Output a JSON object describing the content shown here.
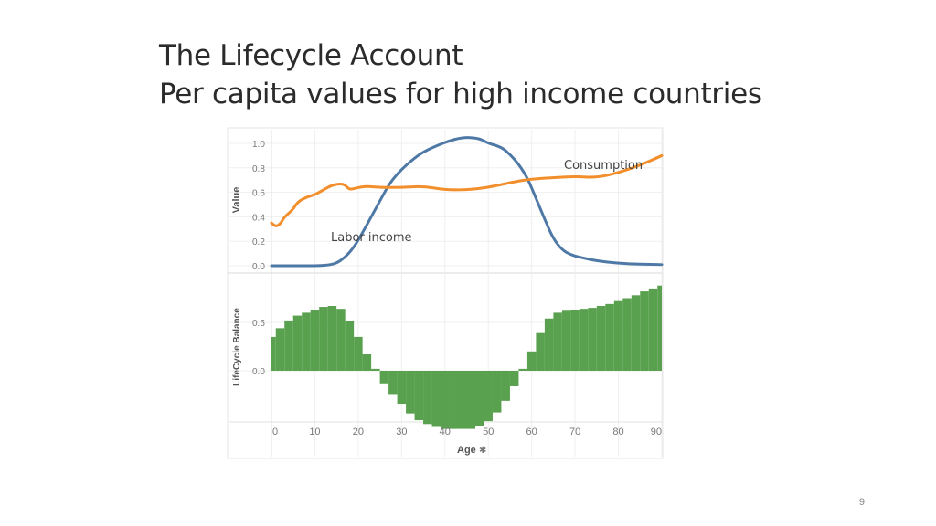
{
  "slide": {
    "title_line1": "The Lifecycle Account",
    "title_line2": "Per capita values for high income countries",
    "page_number": "9"
  },
  "chart_data": {
    "type": "line",
    "panels": [
      {
        "name": "top",
        "ylabel": "Value",
        "yticks": [
          "1.0",
          "0.8",
          "0.6",
          "0.4",
          "0.2",
          "0.0"
        ],
        "ylim": [
          0,
          1.05
        ],
        "series": [
          {
            "name": "Labor income",
            "color": "#4e79a7",
            "x": [
              0,
              5,
              10,
              13,
              15,
              17,
              19,
              21,
              23,
              25,
              27,
              29,
              31,
              33,
              35,
              38,
              41,
              43,
              45,
              48,
              50,
              53,
              55,
              57,
              59,
              61,
              63,
              65,
              67,
              69,
              71,
              75,
              80,
              85,
              90
            ],
            "y": [
              0.0,
              0.0,
              0.0,
              0.005,
              0.02,
              0.07,
              0.15,
              0.27,
              0.4,
              0.53,
              0.66,
              0.75,
              0.82,
              0.88,
              0.93,
              0.98,
              1.02,
              1.04,
              1.05,
              1.04,
              1.0,
              0.97,
              0.91,
              0.83,
              0.72,
              0.55,
              0.38,
              0.22,
              0.13,
              0.09,
              0.07,
              0.04,
              0.02,
              0.012,
              0.01
            ]
          },
          {
            "name": "Consumption",
            "color": "#f28e2b",
            "x": [
              0,
              1,
              2,
              3,
              5,
              6,
              8,
              10,
              12,
              14,
              16,
              17,
              18,
              20,
              22,
              25,
              30,
              35,
              40,
              45,
              50,
              55,
              60,
              65,
              70,
              75,
              80,
              85,
              90
            ],
            "y": [
              0.35,
              0.32,
              0.34,
              0.4,
              0.46,
              0.52,
              0.56,
              0.58,
              0.62,
              0.66,
              0.67,
              0.66,
              0.62,
              0.64,
              0.65,
              0.64,
              0.64,
              0.65,
              0.62,
              0.62,
              0.64,
              0.68,
              0.71,
              0.72,
              0.73,
              0.72,
              0.76,
              0.82,
              0.9
            ]
          }
        ]
      },
      {
        "name": "bottom",
        "type": "bar",
        "ylabel": "LifeCycle Balance",
        "yticks": [
          "0.5",
          "0.0"
        ],
        "ylim": [
          -0.65,
          0.85
        ],
        "series": [
          {
            "name": "LifeCycle Balance",
            "color": "#59a14f",
            "x": [
              0,
              2,
              4,
              6,
              8,
              10,
              12,
              14,
              16,
              18,
              20,
              22,
              24,
              26,
              28,
              30,
              32,
              34,
              36,
              38,
              40,
              42,
              44,
              46,
              48,
              50,
              52,
              54,
              56,
              58,
              60,
              62,
              64,
              66,
              68,
              70,
              72,
              74,
              76,
              78,
              80,
              82,
              84,
              86,
              88,
              90
            ],
            "y": [
              0.35,
              0.44,
              0.52,
              0.57,
              0.6,
              0.63,
              0.66,
              0.67,
              0.64,
              0.51,
              0.35,
              0.17,
              0.02,
              -0.13,
              -0.24,
              -0.34,
              -0.44,
              -0.51,
              -0.55,
              -0.58,
              -0.6,
              -0.6,
              -0.6,
              -0.6,
              -0.57,
              -0.52,
              -0.43,
              -0.31,
              -0.16,
              0.02,
              0.2,
              0.39,
              0.54,
              0.6,
              0.62,
              0.63,
              0.64,
              0.65,
              0.67,
              0.69,
              0.72,
              0.75,
              0.78,
              0.82,
              0.85,
              0.88
            ]
          }
        ]
      }
    ],
    "xlabel": "Age",
    "xticks": [
      0,
      10,
      20,
      30,
      40,
      50,
      60,
      70,
      80,
      90
    ],
    "xlim": [
      0,
      90
    ],
    "grid": true,
    "annotations": [
      "Consumption",
      "Labor income"
    ]
  }
}
